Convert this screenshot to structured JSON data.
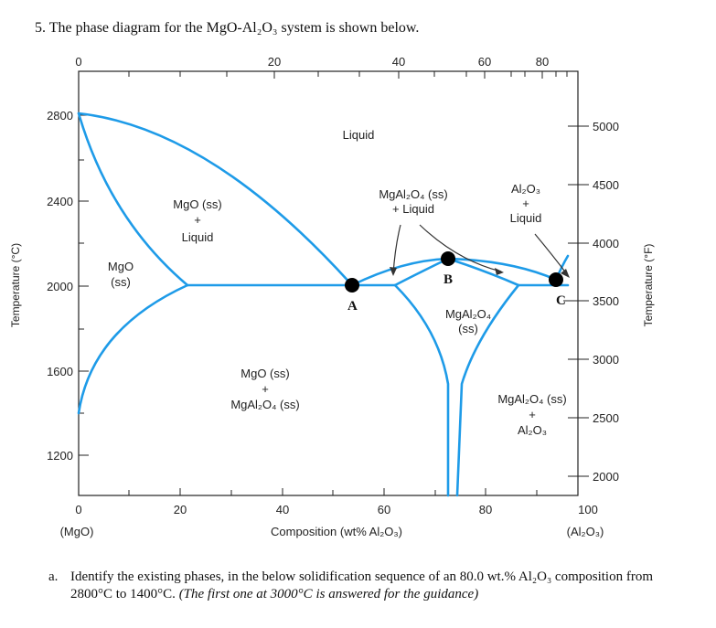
{
  "question": {
    "title": "5. The phase diagram for the MgO-Al₂O₃ system is shown below.",
    "item_label": "a.",
    "item_text": "Identify the existing phases, in the below solidification sequence of an 80.0 wt.% Al₂O₃ composition from 2800°C to 1400°C.",
    "item_italic": "(The first one at 3000°C is answered for the guidance)"
  },
  "diagram": {
    "top_ticks": [
      "0",
      "20",
      "40",
      "60",
      "80"
    ],
    "bottom_ticks": [
      "0",
      "20",
      "40",
      "60",
      "80",
      "100"
    ],
    "left_ticks": [
      "2800",
      "2400",
      "2000",
      "1600",
      "1200"
    ],
    "right_ticks": [
      "5000",
      "4500",
      "4000",
      "3500",
      "3000",
      "2500",
      "2000"
    ],
    "left_axis_label": "Temperature (°C)",
    "right_axis_label": "Temperature (°F)",
    "x_axis_label": "Composition (wt% Al₂O₃)",
    "x_left_end": "(MgO)",
    "x_right_end": "(Al₂O₃)",
    "points": [
      "A",
      "B",
      "C"
    ],
    "regions": {
      "liquid": "Liquid",
      "mgo_liquid_1": "MgO (ss)",
      "mgo_liquid_2": "+",
      "mgo_liquid_3": "Liquid",
      "mgo_ss_1": "MgO",
      "mgo_ss_2": "(ss)",
      "spinel_liquid_1": "MgAl₂O₄ (ss)",
      "spinel_liquid_2": "+ Liquid",
      "alumina_liquid_1": "Al₂O₃",
      "alumina_liquid_2": "+",
      "alumina_liquid_3": "Liquid",
      "spinel_ss_1": "MgAl₂O₄",
      "spinel_ss_2": "(ss)",
      "mgo_spinel_1": "MgO (ss)",
      "mgo_spinel_2": "+",
      "mgo_spinel_3": "MgAl₂O₄ (ss)",
      "spinel_alumina_1": "MgAl₂O₄ (ss)",
      "spinel_alumina_2": "+",
      "spinel_alumina_3": "Al₂O₃"
    },
    "colors": {
      "phase_line": "#1e9be8",
      "frame": "#222222",
      "point": "#000000"
    }
  }
}
